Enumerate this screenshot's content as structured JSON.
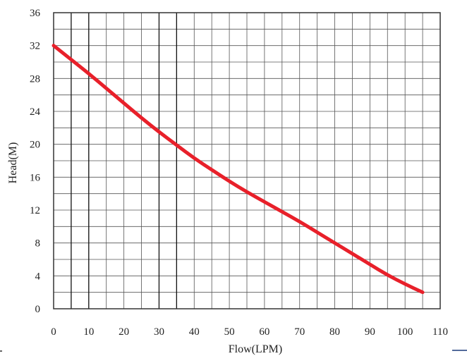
{
  "chart_data": {
    "type": "line",
    "title": "",
    "xlabel": "Flow(LPM)",
    "ylabel": "Head(M)",
    "xlim": [
      0,
      110
    ],
    "ylim": [
      0,
      36
    ],
    "x_ticks": [
      0,
      10,
      20,
      30,
      40,
      50,
      60,
      70,
      80,
      90,
      100,
      110
    ],
    "y_ticks": [
      0,
      4,
      8,
      12,
      16,
      20,
      24,
      28,
      32,
      36
    ],
    "grid": true,
    "legend": "none",
    "series": [
      {
        "color": "#e8202a",
        "x": [
          0,
          5,
          10,
          15,
          20,
          25,
          30,
          35,
          40,
          45,
          50,
          55,
          60,
          65,
          70,
          75,
          80,
          85,
          90,
          95,
          100,
          105
        ],
        "y": [
          32,
          30.3,
          28.6,
          26.8,
          25.0,
          23.2,
          21.5,
          19.9,
          18.3,
          16.9,
          15.5,
          14.2,
          13.0,
          11.8,
          10.6,
          9.3,
          8.0,
          6.7,
          5.4,
          4.1,
          3.0,
          2.0
        ]
      }
    ]
  }
}
